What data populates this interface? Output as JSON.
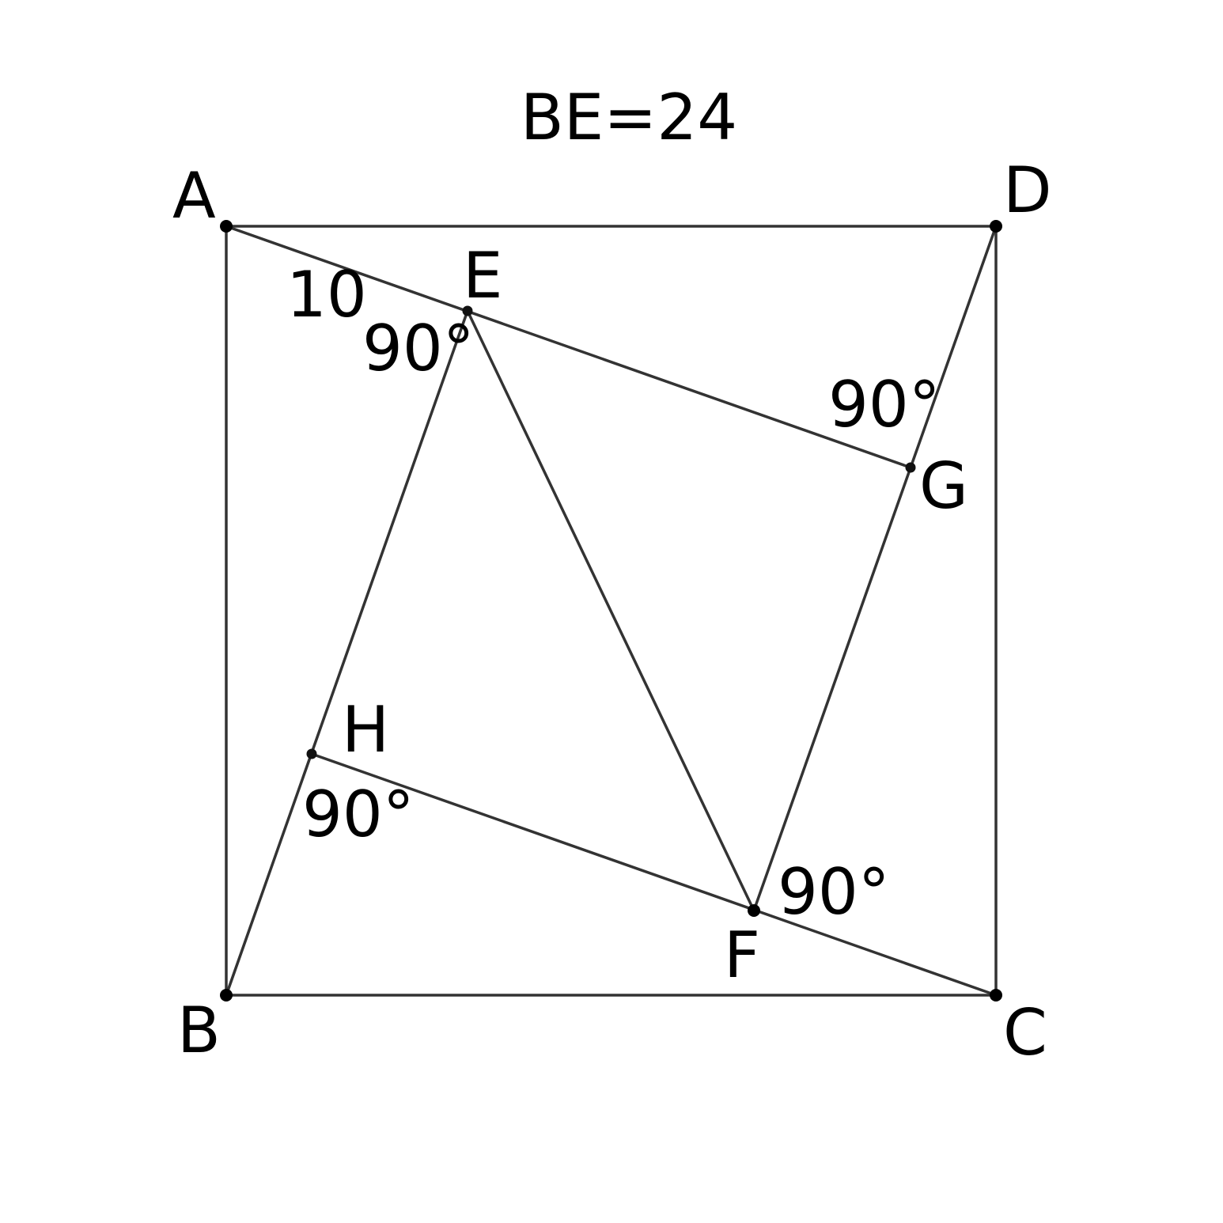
{
  "title": "BE=24",
  "points": {
    "A": "A",
    "B": "B",
    "C": "C",
    "D": "D",
    "E": "E",
    "F": "F",
    "G": "G",
    "H": "H"
  },
  "annotations": {
    "ae_length": "10",
    "angle_e": "90°",
    "angle_g": "90°",
    "angle_h": "90°",
    "angle_f": "90°"
  },
  "colors": {
    "line": "#333333",
    "point": "#000000"
  }
}
